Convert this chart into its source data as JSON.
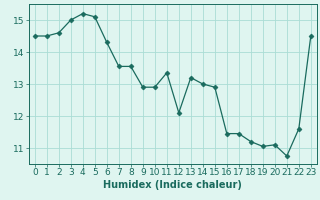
{
  "x": [
    0,
    1,
    2,
    3,
    4,
    5,
    6,
    7,
    8,
    9,
    10,
    11,
    12,
    13,
    14,
    15,
    16,
    17,
    18,
    19,
    20,
    21,
    22,
    23
  ],
  "y": [
    14.5,
    14.5,
    14.6,
    15.0,
    15.2,
    15.1,
    14.3,
    13.55,
    13.55,
    12.9,
    12.9,
    13.35,
    12.1,
    13.2,
    13.0,
    12.9,
    11.45,
    11.45,
    11.2,
    11.05,
    11.1,
    10.75,
    11.6,
    14.5
  ],
  "line_color": "#1a6b5e",
  "marker": "D",
  "marker_size": 2.5,
  "bg_color": "#dff5f0",
  "grid_color": "#aaddd5",
  "tick_color": "#1a6b5e",
  "xlabel": "Humidex (Indice chaleur)",
  "ylim": [
    10.5,
    15.5
  ],
  "xlim": [
    -0.5,
    23.5
  ],
  "yticks": [
    11,
    12,
    13,
    14,
    15
  ],
  "xticks": [
    0,
    1,
    2,
    3,
    4,
    5,
    6,
    7,
    8,
    9,
    10,
    11,
    12,
    13,
    14,
    15,
    16,
    17,
    18,
    19,
    20,
    21,
    22,
    23
  ],
  "xlabel_fontsize": 7,
  "tick_fontsize": 6.5
}
